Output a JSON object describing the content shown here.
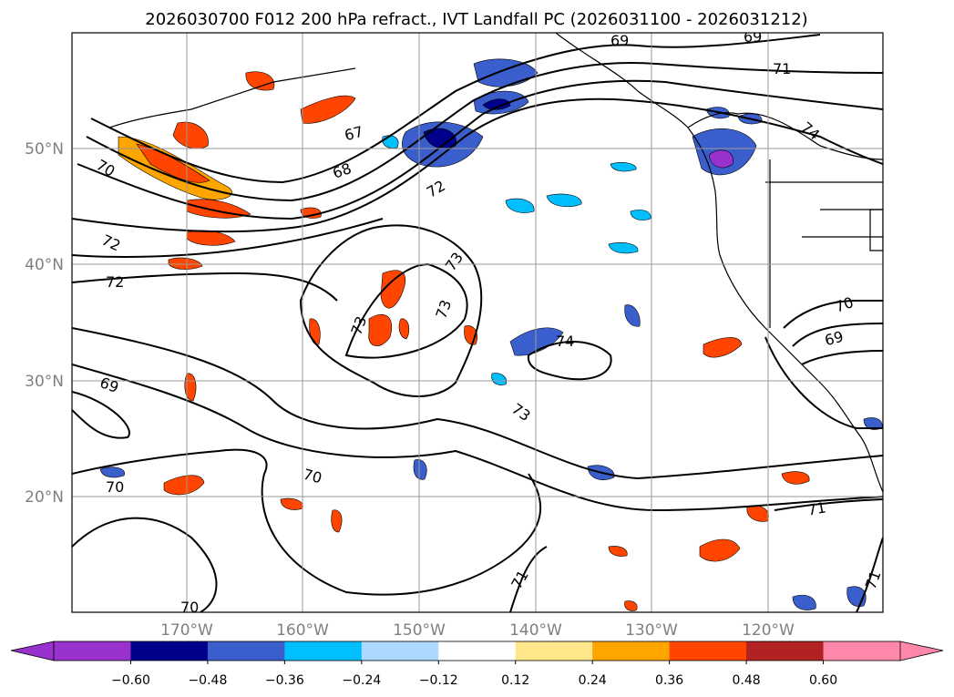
{
  "title": "2026030700 F012 200 hPa refract., IVT Landfall PC (2026031100 - 2026031212)",
  "axes": {
    "lon_ticks": [
      "170°W",
      "160°W",
      "150°W",
      "140°W",
      "130°W",
      "120°W"
    ],
    "lat_ticks": [
      "50°N",
      "40°N",
      "30°N",
      "20°N"
    ],
    "grid": true
  },
  "contour_labels": [
    "69",
    "69",
    "71",
    "74",
    "67",
    "68",
    "72",
    "70",
    "72",
    "72",
    "73",
    "73",
    "73",
    "74",
    "70",
    "69",
    "69",
    "73",
    "70",
    "70",
    "71",
    "71",
    "70",
    "71"
  ],
  "colorbar": {
    "ticks": [
      "−0.60",
      "−0.48",
      "−0.36",
      "−0.24",
      "−0.12",
      "0.12",
      "0.24",
      "0.36",
      "0.48",
      "0.60"
    ],
    "colors": [
      "#9932cc",
      "#00008b",
      "#3a5fcd",
      "#00bfff",
      "#add8ff",
      "#ffffff",
      "#ffe68a",
      "#ffa500",
      "#ff4500",
      "#b22222",
      "#ff88aa"
    ]
  }
}
